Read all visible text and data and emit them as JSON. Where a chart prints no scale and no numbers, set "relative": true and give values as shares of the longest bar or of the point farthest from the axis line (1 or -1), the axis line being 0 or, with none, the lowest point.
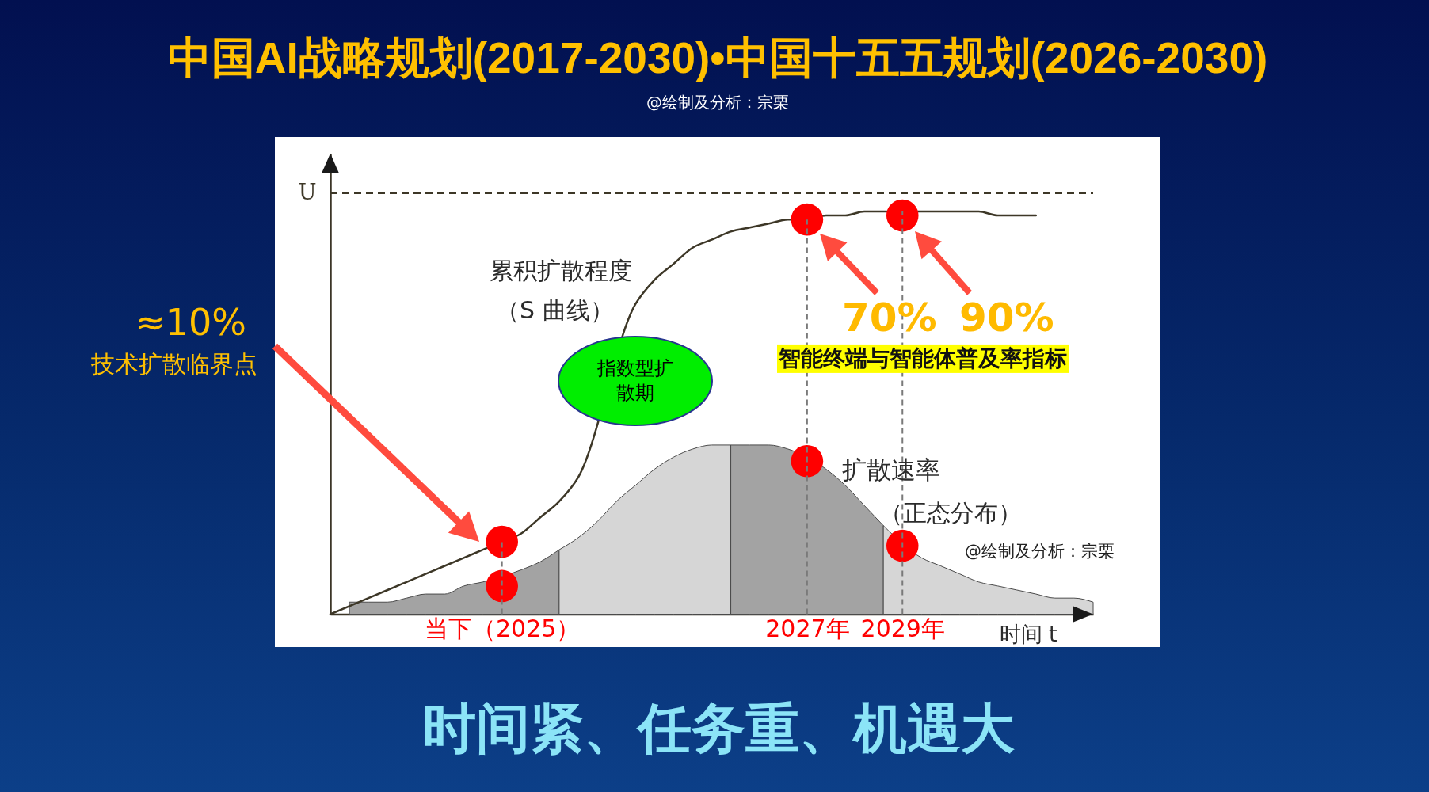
{
  "chart_data": {
    "type": "line",
    "title": "中国AI战略规划(2017-2030)•中国十五五规划(2026-2030)",
    "subtitle": "@绘制及分析：宗栗",
    "xlabel": "时间 t",
    "relative": true,
    "grid": "x",
    "categories": [
      null,
      null,
      null,
      null,
      null,
      null,
      null,
      null,
      null,
      "当下（2025）",
      null,
      null,
      null,
      null,
      null,
      null,
      null,
      null,
      null,
      null,
      null,
      null,
      null,
      null,
      null,
      "2027年",
      null,
      null,
      null,
      null,
      "2029年",
      null,
      null,
      null,
      null,
      null,
      null,
      null,
      null,
      null,
      null
    ],
    "series": [
      {
        "type": "area",
        "color": "#a3a3a3",
        "values": [
          null,
          0.03,
          0.03,
          0.03,
          0.04,
          0.05,
          0.05,
          0.07,
          0.08,
          null,
          0.11,
          0.13,
          0.16,
          null,
          null,
          null,
          null,
          null,
          null,
          null,
          null,
          null,
          null,
          null,
          null,
          null,
          null,
          null,
          null,
          null,
          null,
          null,
          null,
          null,
          null,
          null,
          null,
          null,
          null,
          null,
          null
        ]
      },
      {
        "type": "area",
        "color": "#d6d6d6",
        "values": [
          null,
          null,
          null,
          null,
          null,
          null,
          null,
          null,
          null,
          null,
          null,
          null,
          0.16,
          0.19,
          0.23,
          0.28,
          0.32,
          0.36,
          0.39,
          0.41,
          0.42,
          0.42,
          null,
          null,
          null,
          null,
          null,
          null,
          null,
          null,
          null,
          null,
          null,
          null,
          null,
          null,
          null,
          null,
          null,
          null,
          null
        ]
      },
      {
        "type": "area",
        "color": "#a3a3a3",
        "values": [
          null,
          null,
          null,
          null,
          null,
          null,
          null,
          null,
          null,
          null,
          null,
          null,
          null,
          null,
          null,
          null,
          null,
          null,
          null,
          null,
          null,
          0.42,
          0.42,
          0.42,
          0.41,
          null,
          0.36,
          0.32,
          0.27,
          0.22,
          null,
          null,
          null,
          null,
          null,
          null,
          null,
          null,
          null,
          null,
          null
        ]
      },
      {
        "type": "area",
        "color": "#d6d6d6",
        "values": [
          null,
          null,
          null,
          null,
          null,
          null,
          null,
          null,
          null,
          null,
          null,
          null,
          null,
          null,
          null,
          null,
          null,
          null,
          null,
          null,
          null,
          null,
          null,
          null,
          null,
          null,
          null,
          null,
          null,
          0.22,
          null,
          0.14,
          0.12,
          0.1,
          0.08,
          0.07,
          0.06,
          0.05,
          0.04,
          0.04,
          0.03
        ]
      },
      {
        "color": "#3d3727",
        "values": [
          0,
          0.02,
          0.04,
          0.06,
          0.08,
          0.1,
          0.12,
          0.14,
          0.16,
          0.18,
          0.2,
          0.24,
          0.28,
          0.34,
          null,
          null,
          0.77,
          0.83,
          0.87,
          0.91,
          0.93,
          0.95,
          0.96,
          0.97,
          0.98,
          0.98,
          0.99,
          0.99,
          1,
          1,
          1,
          1,
          1,
          1,
          1,
          0.99,
          0.99,
          0.99,
          null,
          null,
          null
        ]
      },
      {
        "type": "scatter",
        "color": "#ff0000",
        "values": [
          null,
          null,
          null,
          null,
          null,
          null,
          null,
          null,
          null,
          0.18,
          null,
          null,
          null,
          null,
          null,
          null,
          null,
          null,
          null,
          null,
          null,
          null,
          null,
          null,
          null,
          0.98,
          null,
          null,
          null,
          null,
          0.99,
          null,
          null,
          null,
          null,
          null,
          null,
          null,
          null,
          null,
          null
        ]
      },
      {
        "type": "scatter",
        "color": "#ff0000",
        "values": [
          null,
          null,
          null,
          null,
          null,
          null,
          null,
          null,
          null,
          0.07,
          null,
          null,
          null,
          null,
          null,
          null,
          null,
          null,
          null,
          null,
          null,
          null,
          null,
          null,
          null,
          0.38,
          null,
          null,
          null,
          null,
          0.17,
          null,
          null,
          null,
          null,
          null,
          null,
          null,
          null,
          null,
          null
        ]
      }
    ],
    "ref_lines": [
      {
        "axis": "y",
        "value": 1.045,
        "label": "U",
        "color": "#3d3727",
        "line_style": "dashed"
      }
    ],
    "annotations": [
      "累积扩散程度",
      "（S 曲线）",
      "指数型扩散期",
      "扩散速率",
      "（正态分布）",
      "@绘制及分析：宗栗",
      "≈10%",
      "技术扩散临界点",
      "70%",
      "90%",
      "智能终端与智能体普及率指标",
      "时间紧、任务重、机遇大"
    ]
  }
}
